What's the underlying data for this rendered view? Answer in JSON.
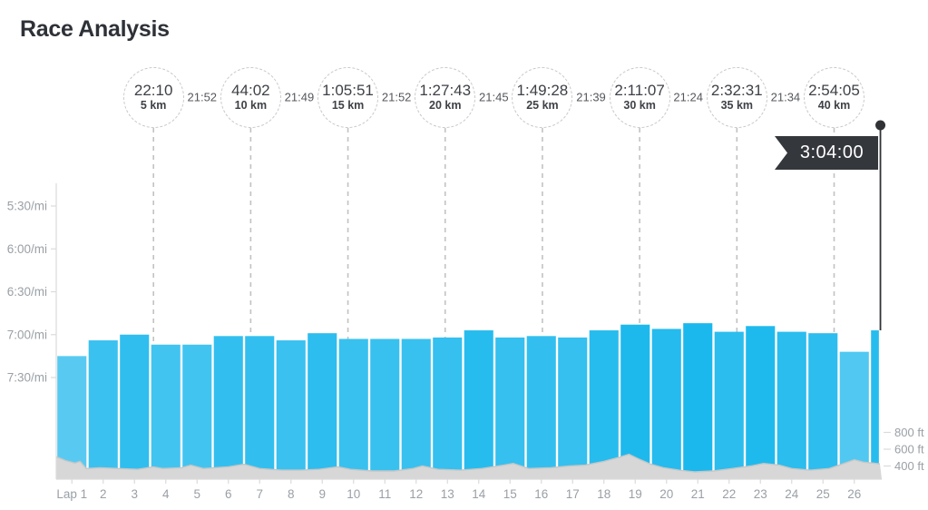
{
  "title": "Race Analysis",
  "chart_data": {
    "type": "bar",
    "title": "Race Analysis",
    "xlabel": "Lap",
    "ylabel": "Pace (min/mi) — inverted axis, faster pace plotted higher",
    "pace_ticks": [
      "5:30/mi",
      "6:00/mi",
      "6:30/mi",
      "7:00/mi",
      "7:30/mi"
    ],
    "laps": [
      {
        "label": "Lap 1",
        "pace_per_mi": "7:15",
        "miles": 1
      },
      {
        "label": "2",
        "pace_per_mi": "7:04",
        "miles": 1
      },
      {
        "label": "3",
        "pace_per_mi": "7:00",
        "miles": 1
      },
      {
        "label": "4",
        "pace_per_mi": "7:07",
        "miles": 1
      },
      {
        "label": "5",
        "pace_per_mi": "7:07",
        "miles": 1
      },
      {
        "label": "6",
        "pace_per_mi": "7:01",
        "miles": 1
      },
      {
        "label": "7",
        "pace_per_mi": "7:01",
        "miles": 1
      },
      {
        "label": "8",
        "pace_per_mi": "7:04",
        "miles": 1
      },
      {
        "label": "9",
        "pace_per_mi": "6:59",
        "miles": 1
      },
      {
        "label": "10",
        "pace_per_mi": "7:03",
        "miles": 1
      },
      {
        "label": "11",
        "pace_per_mi": "7:03",
        "miles": 1
      },
      {
        "label": "12",
        "pace_per_mi": "7:03",
        "miles": 1
      },
      {
        "label": "13",
        "pace_per_mi": "7:02",
        "miles": 1
      },
      {
        "label": "14",
        "pace_per_mi": "6:57",
        "miles": 1
      },
      {
        "label": "15",
        "pace_per_mi": "7:02",
        "miles": 1
      },
      {
        "label": "16",
        "pace_per_mi": "7:01",
        "miles": 1
      },
      {
        "label": "17",
        "pace_per_mi": "7:02",
        "miles": 1
      },
      {
        "label": "18",
        "pace_per_mi": "6:57",
        "miles": 1
      },
      {
        "label": "19",
        "pace_per_mi": "6:53",
        "miles": 1
      },
      {
        "label": "20",
        "pace_per_mi": "6:56",
        "miles": 1
      },
      {
        "label": "21",
        "pace_per_mi": "6:52",
        "miles": 1
      },
      {
        "label": "22",
        "pace_per_mi": "6:58",
        "miles": 1
      },
      {
        "label": "23",
        "pace_per_mi": "6:54",
        "miles": 1
      },
      {
        "label": "24",
        "pace_per_mi": "6:58",
        "miles": 1
      },
      {
        "label": "25",
        "pace_per_mi": "6:59",
        "miles": 1
      },
      {
        "label": "26",
        "pace_per_mi": "7:12",
        "miles": 1
      },
      {
        "label": "",
        "pace_per_mi": "6:57",
        "miles": 0.32
      }
    ],
    "splits_km": [
      {
        "time": "22:10",
        "distance": "5 km",
        "km": 5,
        "interval_after": "21:52"
      },
      {
        "time": "44:02",
        "distance": "10 km",
        "km": 10,
        "interval_after": "21:49"
      },
      {
        "time": "1:05:51",
        "distance": "15 km",
        "km": 15,
        "interval_after": "21:52"
      },
      {
        "time": "1:27:43",
        "distance": "20 km",
        "km": 20,
        "interval_after": "21:45"
      },
      {
        "time": "1:49:28",
        "distance": "25 km",
        "km": 25,
        "interval_after": "21:39"
      },
      {
        "time": "2:11:07",
        "distance": "30 km",
        "km": 30,
        "interval_after": "21:24"
      },
      {
        "time": "2:32:31",
        "distance": "35 km",
        "km": 35,
        "interval_after": "21:34"
      },
      {
        "time": "2:54:05",
        "distance": "40 km",
        "km": 40,
        "interval_after": null
      }
    ],
    "finish_time": "3:04:00",
    "elevation": {
      "unit": "ft",
      "axis_ticks": [
        {
          "label": "800 ft",
          "value": 800
        },
        {
          "label": "600 ft",
          "value": 600
        },
        {
          "label": "400 ft",
          "value": 400
        }
      ],
      "profile_mi_ft": [
        [
          0,
          510
        ],
        [
          0.3,
          465
        ],
        [
          0.6,
          435
        ],
        [
          0.76,
          455
        ],
        [
          0.96,
          370
        ],
        [
          1.4,
          380
        ],
        [
          2.0,
          370
        ],
        [
          2.6,
          360
        ],
        [
          3.1,
          390
        ],
        [
          3.4,
          370
        ],
        [
          4.0,
          380
        ],
        [
          4.3,
          410
        ],
        [
          4.7,
          370
        ],
        [
          5.5,
          390
        ],
        [
          6.0,
          420
        ],
        [
          6.5,
          370
        ],
        [
          7.2,
          350
        ],
        [
          7.8,
          350
        ],
        [
          8.4,
          360
        ],
        [
          9.0,
          390
        ],
        [
          9.4,
          360
        ],
        [
          10.1,
          340
        ],
        [
          10.8,
          340
        ],
        [
          11.4,
          370
        ],
        [
          11.7,
          400
        ],
        [
          12.2,
          360
        ],
        [
          12.9,
          350
        ],
        [
          13.6,
          370
        ],
        [
          14.3,
          410
        ],
        [
          14.6,
          430
        ],
        [
          15.1,
          370
        ],
        [
          15.8,
          380
        ],
        [
          16.4,
          400
        ],
        [
          16.9,
          410
        ],
        [
          17.5,
          455
        ],
        [
          18.0,
          505
        ],
        [
          18.3,
          540
        ],
        [
          18.6,
          485
        ],
        [
          19.0,
          420
        ],
        [
          19.4,
          380
        ],
        [
          19.9,
          350
        ],
        [
          20.4,
          330
        ],
        [
          21.0,
          340
        ],
        [
          21.6,
          370
        ],
        [
          22.2,
          400
        ],
        [
          22.6,
          430
        ],
        [
          23.1,
          410
        ],
        [
          23.5,
          370
        ],
        [
          24.1,
          350
        ],
        [
          24.7,
          370
        ],
        [
          25.1,
          420
        ],
        [
          25.5,
          475
        ],
        [
          25.8,
          445
        ],
        [
          26.1,
          435
        ],
        [
          26.32,
          425
        ]
      ]
    },
    "legend": null,
    "grid": false
  },
  "colors": {
    "bar_fast": "#1ab8ed",
    "bar_slow": "#58caf2",
    "elevation_fill": "#d7d7d7",
    "elevation_stroke": "#c6c6c6",
    "axis_line": "#dadada",
    "tick_text": "#9aa0a6",
    "split_circle_border": "#c9c9c9",
    "split_text": "#3e4146",
    "interval_text": "#54575c",
    "marker_dash": "#c2c2c2",
    "flag_bg": "#34373c",
    "flag_text": "#ffffff",
    "pole": "#303236",
    "title_text": "#2e3137"
  }
}
